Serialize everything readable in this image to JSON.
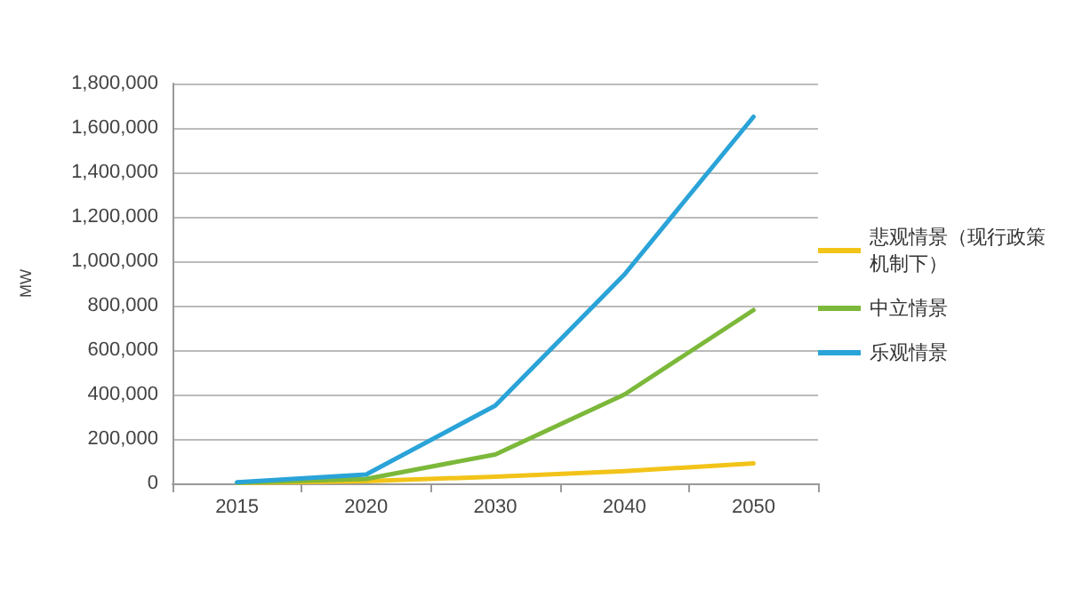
{
  "chart_data": {
    "type": "line",
    "ylabel": "MW",
    "categories": [
      "2015",
      "2020",
      "2030",
      "2040",
      "2050"
    ],
    "series": [
      {
        "name": "悲观情景（现行政策机制下）",
        "color": "#f2c318",
        "values": [
          2000,
          10000,
          30000,
          55000,
          90000
        ]
      },
      {
        "name": "中立情景",
        "color": "#7cb83a",
        "values": [
          3000,
          20000,
          130000,
          400000,
          780000
        ]
      },
      {
        "name": "乐观情景",
        "color": "#2aa3d8",
        "values": [
          5000,
          40000,
          350000,
          940000,
          1650000
        ]
      }
    ],
    "ylim": [
      0,
      1800000
    ],
    "yticks": [
      0,
      {
        "value": 200000,
        "label": "200,000"
      },
      {
        "value": 400000,
        "label": "400,000"
      },
      {
        "value": 600000,
        "label": "600,000"
      },
      {
        "value": 800000,
        "label": "800,000"
      },
      {
        "value": 1000000,
        "label": "1,000,000"
      },
      {
        "value": 1200000,
        "label": "1,200,000"
      },
      {
        "value": 1400000,
        "label": "1,400,000"
      },
      {
        "value": 1600000,
        "label": "1,600,000"
      },
      {
        "value": 1800000,
        "label": "1,800,000"
      }
    ],
    "grid": "y",
    "legend": "right",
    "marker": "none",
    "line_style": "solid"
  }
}
